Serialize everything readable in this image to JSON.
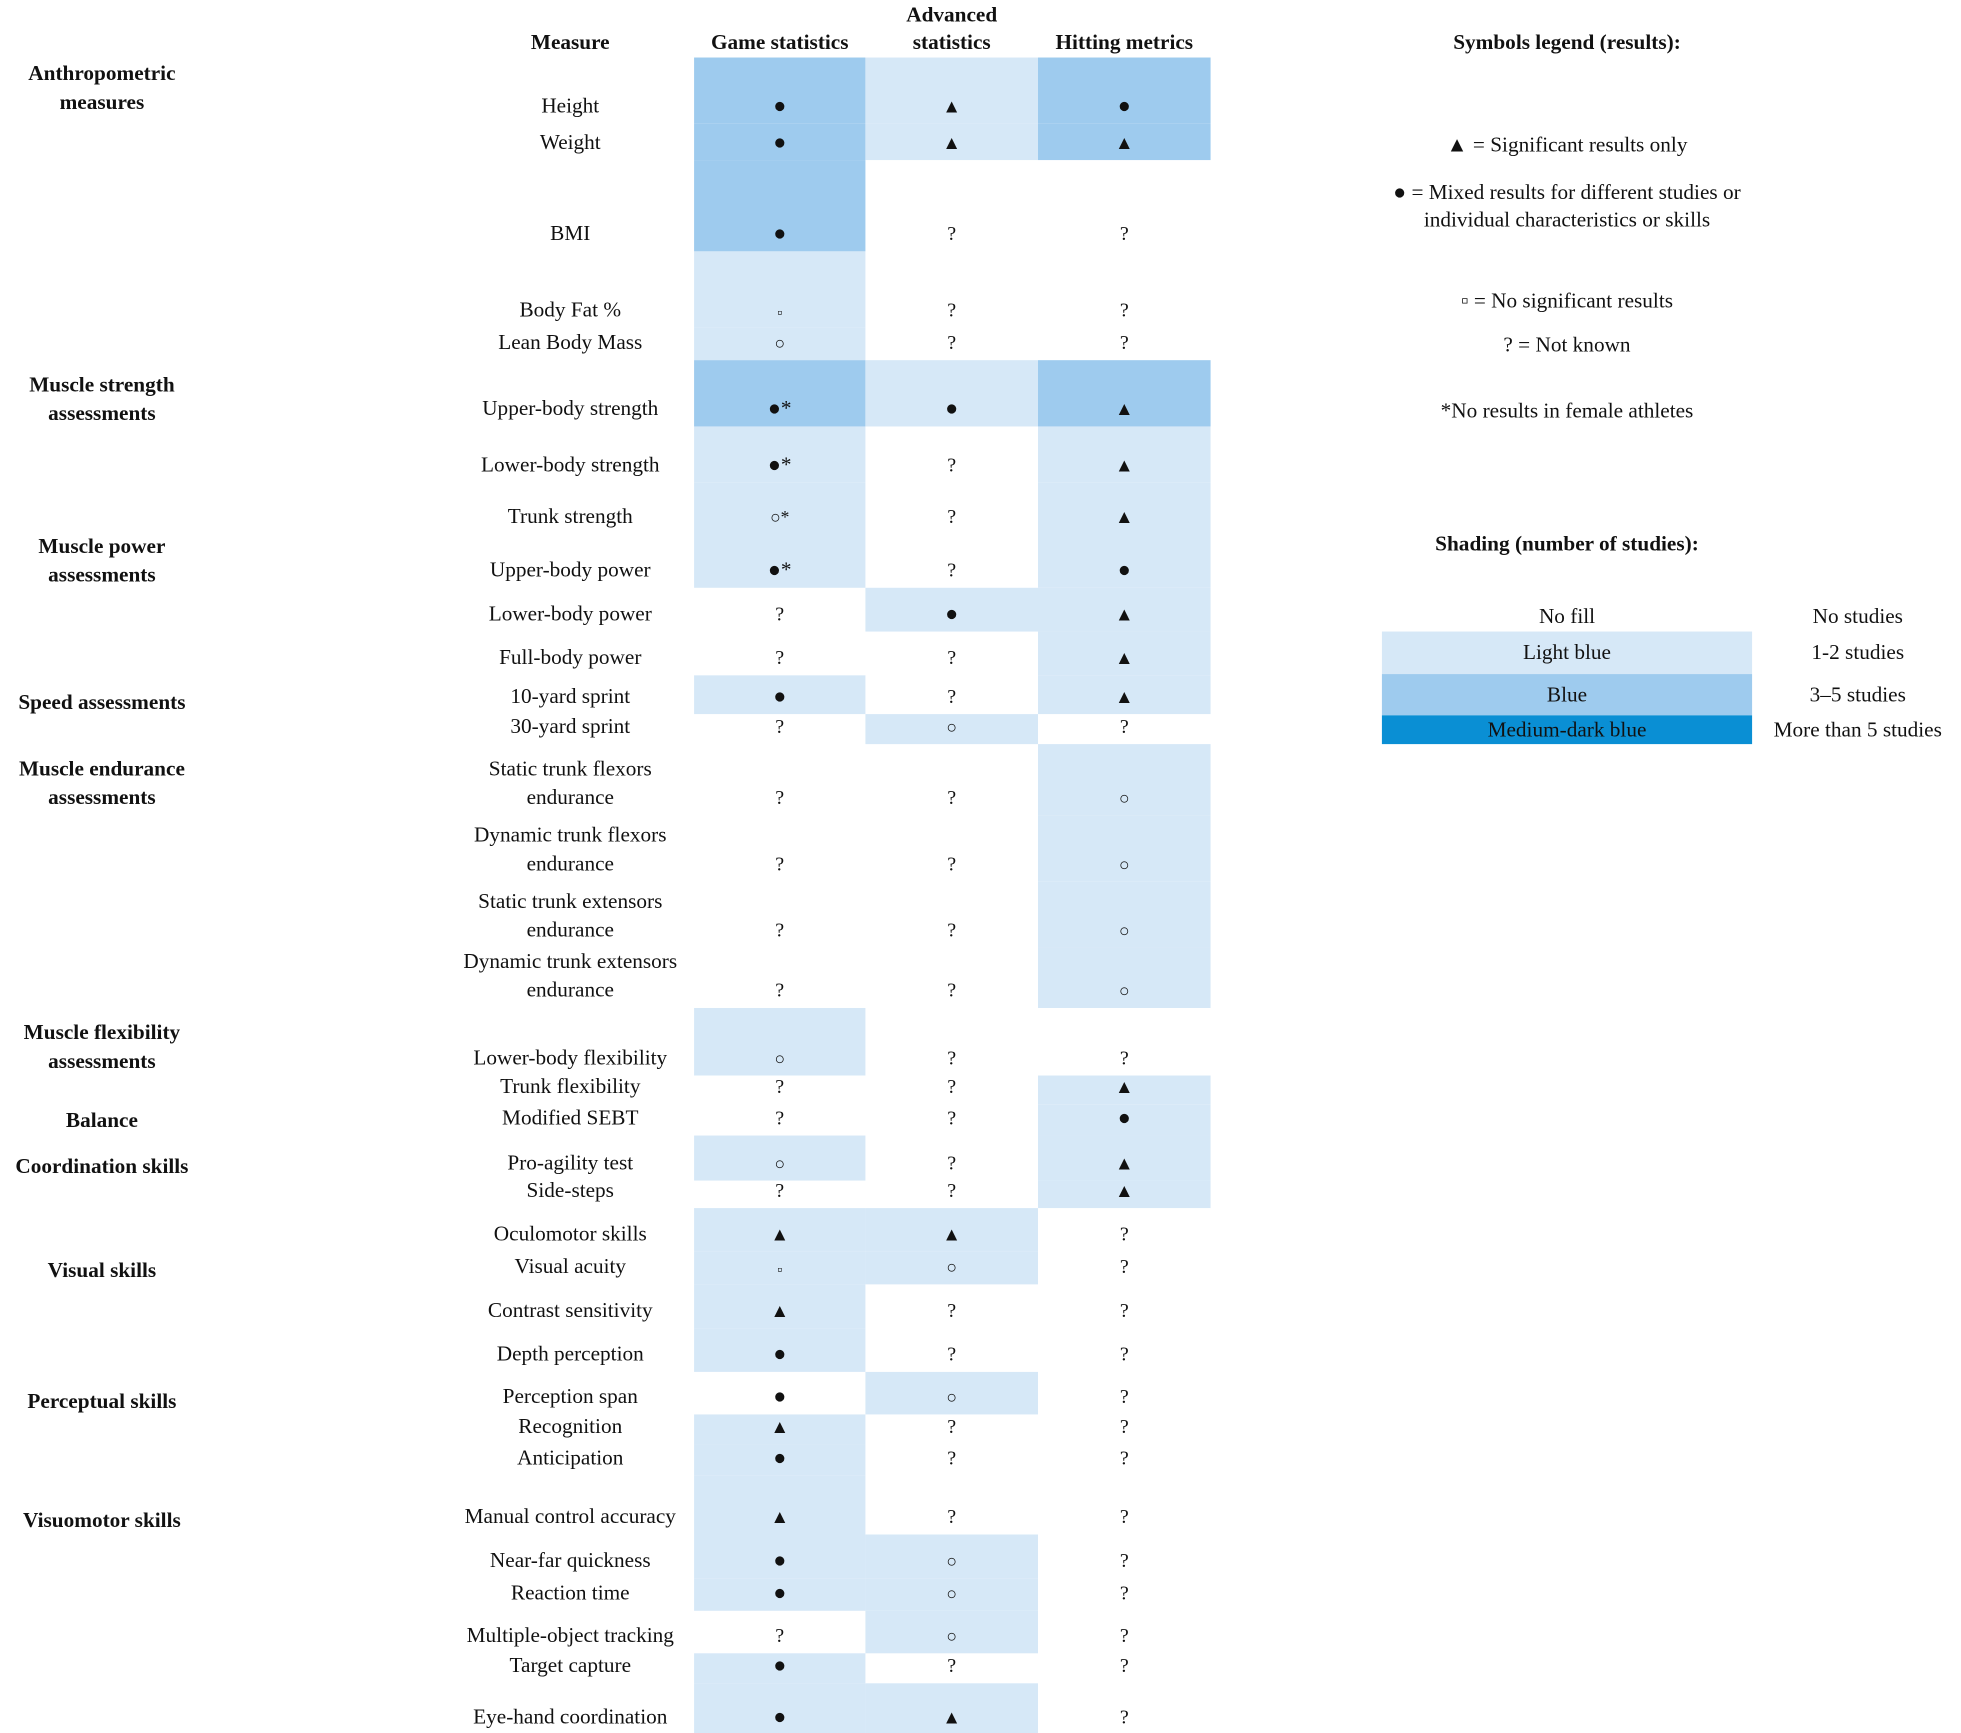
{
  "headers": {
    "measure": "Measure",
    "game": "Game statistics",
    "advanced": "Advanced statistics",
    "hitting": "Hitting metrics"
  },
  "categories": [
    "Anthropometric measures",
    "Muscle strength assessments",
    "Muscle power assessments",
    "Speed assessments",
    "Muscle endurance assessments",
    "Muscle flexibility assessments",
    "Balance",
    "Coordination skills",
    "Visual skills",
    "Perceptual skills",
    "Visuomotor skills"
  ],
  "rows": [
    {
      "measure": "Height",
      "game": "●",
      "advanced": "▲",
      "hitting": "●",
      "game_shade": "blue",
      "advanced_shade": "light",
      "hitting_shade": "blue"
    },
    {
      "measure": "Weight",
      "game": "●",
      "advanced": "▲",
      "hitting": "▲",
      "game_shade": "blue",
      "advanced_shade": "light",
      "hitting_shade": "blue"
    },
    {
      "measure": "BMI",
      "game": "●",
      "advanced": "?",
      "hitting": "?",
      "game_shade": "blue",
      "advanced_shade": "none",
      "hitting_shade": "none"
    },
    {
      "measure": "Body Fat %",
      "game": "▫",
      "advanced": "?",
      "hitting": "?",
      "game_shade": "light",
      "advanced_shade": "none",
      "hitting_shade": "none"
    },
    {
      "measure": "Lean Body Mass",
      "game": "○",
      "advanced": "?",
      "hitting": "?",
      "game_shade": "light",
      "advanced_shade": "none",
      "hitting_shade": "none"
    },
    {
      "measure": "Upper-body strength",
      "game": "●*",
      "advanced": "●",
      "hitting": "▲",
      "game_shade": "blue",
      "advanced_shade": "light",
      "hitting_shade": "blue"
    },
    {
      "measure": "Lower-body strength",
      "game": "●*",
      "advanced": "?",
      "hitting": "▲",
      "game_shade": "light",
      "advanced_shade": "none",
      "hitting_shade": "light"
    },
    {
      "measure": "Trunk strength",
      "game": "○*",
      "advanced": "?",
      "hitting": "▲",
      "game_shade": "light",
      "advanced_shade": "none",
      "hitting_shade": "light"
    },
    {
      "measure": "Upper-body power",
      "game": "●*",
      "advanced": "?",
      "hitting": "●",
      "game_shade": "light",
      "advanced_shade": "none",
      "hitting_shade": "light"
    },
    {
      "measure": "Lower-body power",
      "game": "?",
      "advanced": "●",
      "hitting": "▲",
      "game_shade": "none",
      "advanced_shade": "light",
      "hitting_shade": "light"
    },
    {
      "measure": "Full-body power",
      "game": "?",
      "advanced": "?",
      "hitting": "▲",
      "game_shade": "none",
      "advanced_shade": "none",
      "hitting_shade": "light"
    },
    {
      "measure": "10-yard sprint",
      "game": "●",
      "advanced": "?",
      "hitting": "▲",
      "game_shade": "light",
      "advanced_shade": "none",
      "hitting_shade": "light"
    },
    {
      "measure": "30-yard sprint",
      "game": "?",
      "advanced": "○",
      "hitting": "?",
      "game_shade": "none",
      "advanced_shade": "light",
      "hitting_shade": "none"
    },
    {
      "measure": "Static trunk flexors endurance",
      "game": "?",
      "advanced": "?",
      "hitting": "○",
      "game_shade": "none",
      "advanced_shade": "none",
      "hitting_shade": "light"
    },
    {
      "measure": "Dynamic trunk flexors endurance",
      "game": "?",
      "advanced": "?",
      "hitting": "○",
      "game_shade": "none",
      "advanced_shade": "none",
      "hitting_shade": "light"
    },
    {
      "measure": "Static trunk extensors endurance",
      "game": "?",
      "advanced": "?",
      "hitting": "○",
      "game_shade": "none",
      "advanced_shade": "none",
      "hitting_shade": "light"
    },
    {
      "measure": "Dynamic trunk extensors endurance",
      "game": "?",
      "advanced": "?",
      "hitting": "○",
      "game_shade": "none",
      "advanced_shade": "none",
      "hitting_shade": "light"
    },
    {
      "measure": "Lower-body flexibility",
      "game": "○",
      "advanced": "?",
      "hitting": "?",
      "game_shade": "light",
      "advanced_shade": "none",
      "hitting_shade": "none"
    },
    {
      "measure": "Trunk flexibility",
      "game": "?",
      "advanced": "?",
      "hitting": "▲",
      "game_shade": "none",
      "advanced_shade": "none",
      "hitting_shade": "light"
    },
    {
      "measure": "Modified SEBT",
      "game": "?",
      "advanced": "?",
      "hitting": "●",
      "game_shade": "none",
      "advanced_shade": "none",
      "hitting_shade": "light"
    },
    {
      "measure": "Pro-agility test",
      "game": "○",
      "advanced": "?",
      "hitting": "▲",
      "game_shade": "light",
      "advanced_shade": "none",
      "hitting_shade": "light"
    },
    {
      "measure": "Side-steps",
      "game": "?",
      "advanced": "?",
      "hitting": "▲",
      "game_shade": "none",
      "advanced_shade": "none",
      "hitting_shade": "light"
    },
    {
      "measure": "Oculomotor skills",
      "game": "▲",
      "advanced": "▲",
      "hitting": "?",
      "game_shade": "light",
      "advanced_shade": "light",
      "hitting_shade": "none"
    },
    {
      "measure": "Visual acuity",
      "game": "▫",
      "advanced": "○",
      "hitting": "?",
      "game_shade": "light",
      "advanced_shade": "light",
      "hitting_shade": "none"
    },
    {
      "measure": "Contrast sensitivity",
      "game": "▲",
      "advanced": "?",
      "hitting": "?",
      "game_shade": "light",
      "advanced_shade": "none",
      "hitting_shade": "none"
    },
    {
      "measure": "Depth perception",
      "game": "●",
      "advanced": "?",
      "hitting": "?",
      "game_shade": "light",
      "advanced_shade": "none",
      "hitting_shade": "none"
    },
    {
      "measure": "Perception span",
      "game": "●",
      "advanced": "○",
      "hitting": "?",
      "game_shade": "none",
      "advanced_shade": "light",
      "hitting_shade": "none"
    },
    {
      "measure": "Recognition",
      "game": "▲",
      "advanced": "?",
      "hitting": "?",
      "game_shade": "light",
      "advanced_shade": "none",
      "hitting_shade": "none"
    },
    {
      "measure": "Anticipation",
      "game": "●",
      "advanced": "?",
      "hitting": "?",
      "game_shade": "light",
      "advanced_shade": "none",
      "hitting_shade": "none"
    },
    {
      "measure": "Manual control accuracy",
      "game": "▲",
      "advanced": "?",
      "hitting": "?",
      "game_shade": "light",
      "advanced_shade": "none",
      "hitting_shade": "none"
    },
    {
      "measure": "Near-far quickness",
      "game": "●",
      "advanced": "○",
      "hitting": "?",
      "game_shade": "light",
      "advanced_shade": "light",
      "hitting_shade": "none"
    },
    {
      "measure": "Reaction time",
      "game": "●",
      "advanced": "○",
      "hitting": "?",
      "game_shade": "light",
      "advanced_shade": "light",
      "hitting_shade": "none"
    },
    {
      "measure": "Multiple-object tracking",
      "game": "?",
      "advanced": "○",
      "hitting": "?",
      "game_shade": "none",
      "advanced_shade": "light",
      "hitting_shade": "none"
    },
    {
      "measure": "Target capture",
      "game": "●",
      "advanced": "?",
      "hitting": "?",
      "game_shade": "light",
      "advanced_shade": "none",
      "hitting_shade": "none"
    },
    {
      "measure": "Eye-hand coordination",
      "game": "●",
      "advanced": "▲",
      "hitting": "?",
      "game_shade": "light",
      "advanced_shade": "light",
      "hitting_shade": "none"
    }
  ],
  "legend": {
    "symbols_title": "Symbols legend (results):",
    "significant": "▲ = Significant results only",
    "mixed": "● = Mixed results for different studies or individual characteristics or skills",
    "no_significant": "▫ = No significant results",
    "not_known": "? = Not known",
    "female_note": "*No results in female athletes",
    "shading_title": "Shading (number of studies):",
    "shading_rows": [
      {
        "label": "No fill",
        "count": "No studies"
      },
      {
        "label": "Light blue",
        "count": "1-2 studies"
      },
      {
        "label": "Blue",
        "count": "3–5 studies"
      },
      {
        "label": "Medium-dark blue",
        "count": "More than 5 studies"
      }
    ]
  },
  "colors": {
    "light_blue": "#d6e8f7",
    "blue": "#9ecbee",
    "medium_dark_blue": "#0a8fd4"
  }
}
